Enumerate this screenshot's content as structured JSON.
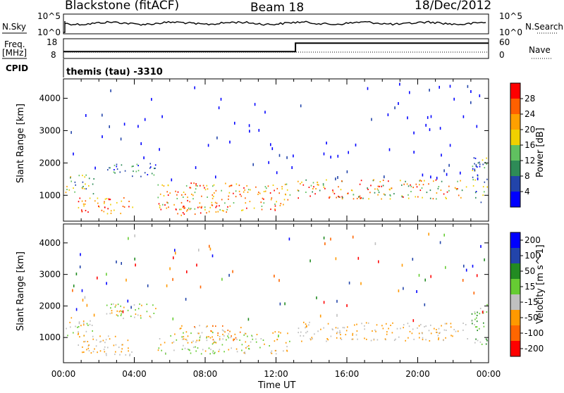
{
  "header": {
    "station": "Blackstone (fitACF)",
    "beam": "Beam 18",
    "date": "18/Dec/2012"
  },
  "noise_panel": {
    "left_label": "N.Sky",
    "left_ticks": [
      "10^5",
      "10^0"
    ],
    "right_label": "N.Search",
    "right_ticks": [
      "10^5",
      "10^0"
    ]
  },
  "freq_panel": {
    "left_label_line1": "Freq.",
    "left_label_line2": "[MHz]",
    "left_ticks": [
      "18",
      "8"
    ],
    "right_label": "Nave",
    "right_ticks": [
      "60",
      "0"
    ],
    "freq_mhz": 10,
    "nave_series": [
      {
        "t": 0,
        "v": 20
      },
      {
        "t": 13.1,
        "v": 20
      },
      {
        "t": 13.1,
        "v": 48
      },
      {
        "t": 24,
        "v": 48
      }
    ]
  },
  "cpid": {
    "label": "CPID",
    "program": "themis (tau) -3310"
  },
  "time_axis": {
    "ticks": [
      "00:00",
      "04:00",
      "08:00",
      "12:00",
      "16:00",
      "20:00",
      "00:00"
    ],
    "label": "Time UT"
  },
  "colors": {
    "power": [
      "#0000ff",
      "#2244aa",
      "#2e8b57",
      "#60c060",
      "#f0d000",
      "#ffa000",
      "#ff6000",
      "#ff0000"
    ],
    "velocity": [
      "#0000ff",
      "#2244aa",
      "#228b22",
      "#66cc33",
      "#c0c0c0",
      "#ff9900",
      "#ff6600",
      "#ff0000"
    ]
  },
  "chart_data": [
    {
      "type": "heatmap",
      "name": "power",
      "ylabel": "Slant Range [km]",
      "xlabel": "",
      "yticks": [
        "1000",
        "2000",
        "3000",
        "4000"
      ],
      "ylim": [
        200,
        4600
      ],
      "xlim_hours": [
        0,
        24
      ],
      "colorbar_label": "Power [dB]",
      "colorbar_ticks": [
        "4",
        "8",
        "12",
        "16",
        "20",
        "24",
        "28"
      ],
      "scatter_bands": [
        {
          "t0": 0.1,
          "t1": 1.7,
          "r0": 1050,
          "r1": 1650,
          "lvl": [
            1,
            5
          ]
        },
        {
          "t0": 0.8,
          "t1": 3.9,
          "r0": 450,
          "r1": 950,
          "lvl": [
            4,
            7
          ]
        },
        {
          "t0": 2.2,
          "t1": 5.2,
          "r0": 1600,
          "r1": 2000,
          "lvl": [
            0,
            3
          ]
        },
        {
          "t0": 5.3,
          "t1": 12.8,
          "r0": 550,
          "r1": 1400,
          "lvl": [
            3,
            7
          ]
        },
        {
          "t0": 6.3,
          "t1": 9.3,
          "r0": 400,
          "r1": 700,
          "lvl": [
            5,
            7
          ]
        },
        {
          "t0": 13.2,
          "t1": 22.8,
          "r0": 900,
          "r1": 1500,
          "lvl": [
            2,
            7
          ]
        },
        {
          "t0": 23.0,
          "t1": 23.9,
          "r0": 800,
          "r1": 2200,
          "lvl": [
            0,
            4
          ]
        }
      ]
    },
    {
      "type": "heatmap",
      "name": "velocity",
      "ylabel": "Slant Range [km]",
      "xlabel": "Time UT",
      "yticks": [
        "1000",
        "2000",
        "3000",
        "4000"
      ],
      "ylim": [
        200,
        4600
      ],
      "xlim_hours": [
        0,
        24
      ],
      "colorbar_label": "Velocity [m s^-1]",
      "colorbar_ticks": [
        "200",
        "100",
        "50",
        "15",
        "-15",
        "-50",
        "-100",
        "-200"
      ],
      "scatter_bands": [
        {
          "t0": 0.1,
          "t1": 1.7,
          "r0": 1050,
          "r1": 1650,
          "lvl": [
            3,
            5
          ]
        },
        {
          "t0": 0.8,
          "t1": 3.9,
          "r0": 450,
          "r1": 1100,
          "lvl": [
            4,
            5
          ]
        },
        {
          "t0": 2.2,
          "t1": 5.2,
          "r0": 1600,
          "r1": 2100,
          "lvl": [
            3,
            5
          ]
        },
        {
          "t0": 6.3,
          "t1": 10.0,
          "r0": 900,
          "r1": 1400,
          "lvl": [
            4,
            6
          ]
        },
        {
          "t0": 5.3,
          "t1": 12.8,
          "r0": 500,
          "r1": 1200,
          "lvl": [
            3,
            5
          ]
        },
        {
          "t0": 13.2,
          "t1": 22.8,
          "r0": 900,
          "r1": 1500,
          "lvl": [
            4,
            5
          ]
        },
        {
          "t0": 23.0,
          "t1": 23.9,
          "r0": 800,
          "r1": 2200,
          "lvl": [
            2,
            4
          ]
        }
      ]
    }
  ]
}
